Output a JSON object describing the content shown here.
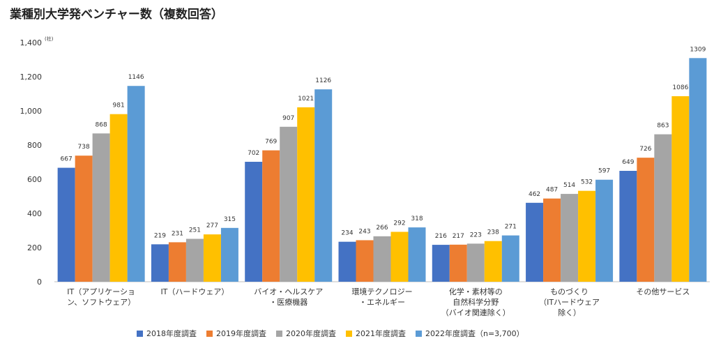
{
  "chart_data": {
    "type": "bar",
    "title": "業種別大学発ベンチャー数（複数回答）",
    "unit": "(社)",
    "ylim": [
      0,
      1400
    ],
    "yticks": [
      "0",
      "200",
      "400",
      "600",
      "800",
      "1,000",
      "1,200",
      "1,400"
    ],
    "categories": [
      [
        "IT（アプリケーショ",
        "ン、ソフトウェア）"
      ],
      [
        "IT（ハードウェア）"
      ],
      [
        "バイオ・ヘルスケア",
        "・医療機器"
      ],
      [
        "環境テクノロジー",
        "・エネルギー"
      ],
      [
        "化学・素材等の",
        "自然科学分野",
        "（バイオ関連除く）"
      ],
      [
        "ものづくり",
        "（ITハードウェア",
        "除く）"
      ],
      [
        "その他サービス"
      ]
    ],
    "series": [
      {
        "name": "2018年度調査",
        "color": "#4472c4",
        "values": [
          667,
          219,
          702,
          234,
          216,
          462,
          649
        ]
      },
      {
        "name": "2019年度調査",
        "color": "#ed7d31",
        "values": [
          738,
          231,
          769,
          243,
          217,
          487,
          726
        ]
      },
      {
        "name": "2020年度調査",
        "color": "#a5a5a5",
        "values": [
          868,
          251,
          907,
          266,
          223,
          514,
          863
        ]
      },
      {
        "name": "2021年度調査",
        "color": "#ffc000",
        "values": [
          981,
          277,
          1021,
          292,
          238,
          532,
          1086
        ]
      },
      {
        "name": "2022年度調査（n=3,700）",
        "color": "#5b9bd5",
        "values": [
          1146,
          315,
          1126,
          318,
          271,
          597,
          1309
        ]
      }
    ]
  }
}
